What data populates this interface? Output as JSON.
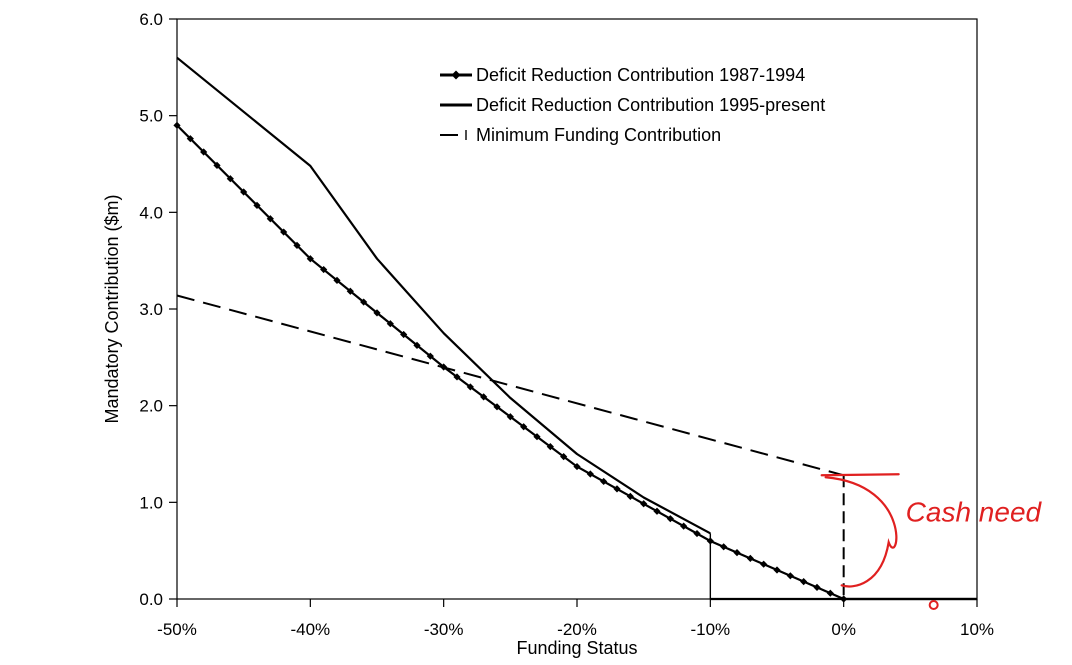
{
  "chart_data": {
    "type": "line",
    "xlabel": "Funding Status",
    "ylabel": "Mandatory Contribution ($m)",
    "xlim": [
      -50,
      10
    ],
    "ylim": [
      0,
      6
    ],
    "x_ticks": [
      -50,
      -40,
      -30,
      -20,
      -10,
      0,
      10
    ],
    "x_tick_labels": [
      "-50%",
      "-40%",
      "-30%",
      "-20%",
      "-10%",
      "0%",
      "10%"
    ],
    "y_ticks": [
      0,
      1,
      2,
      3,
      4,
      5,
      6
    ],
    "y_tick_labels": [
      "0.0",
      "1.0",
      "2.0",
      "3.0",
      "4.0",
      "5.0",
      "6.0"
    ],
    "grid": false,
    "legend_position": "top-center",
    "series": [
      {
        "name": "Deficit Reduction Contribution 1987-1994",
        "style": "solid-diamond-markers",
        "color": "#000000",
        "x": [
          -50,
          -40,
          -30,
          -20,
          -10,
          0
        ],
        "y": [
          4.9,
          3.52,
          2.4,
          1.37,
          0.6,
          0.0
        ],
        "tail": {
          "x": [
            0,
            10
          ],
          "y": [
            0.0,
            0.0
          ]
        }
      },
      {
        "name": "Deficit Reduction Contribution 1995-present",
        "style": "solid",
        "color": "#000000",
        "x": [
          -50,
          -40,
          -35,
          -30,
          -25,
          -20,
          -15,
          -10
        ],
        "y": [
          5.6,
          4.48,
          3.52,
          2.75,
          2.08,
          1.5,
          1.05,
          0.68
        ],
        "drop": {
          "x": -10,
          "y": [
            0.68,
            0.0
          ]
        },
        "tail": {
          "x": [
            -10,
            10
          ],
          "y": [
            0.0,
            0.0
          ]
        }
      },
      {
        "name": "Minimum Funding Contribution",
        "style": "dashed",
        "color": "#000000",
        "x": [
          -50,
          0
        ],
        "y": [
          3.14,
          1.28
        ],
        "drop": {
          "x": 0,
          "y": [
            1.28,
            0.0
          ]
        }
      }
    ],
    "annotation": {
      "text": "Cash need",
      "color": "#e02020",
      "brace_x": 0,
      "brace_y": [
        0.1,
        1.28
      ]
    }
  }
}
